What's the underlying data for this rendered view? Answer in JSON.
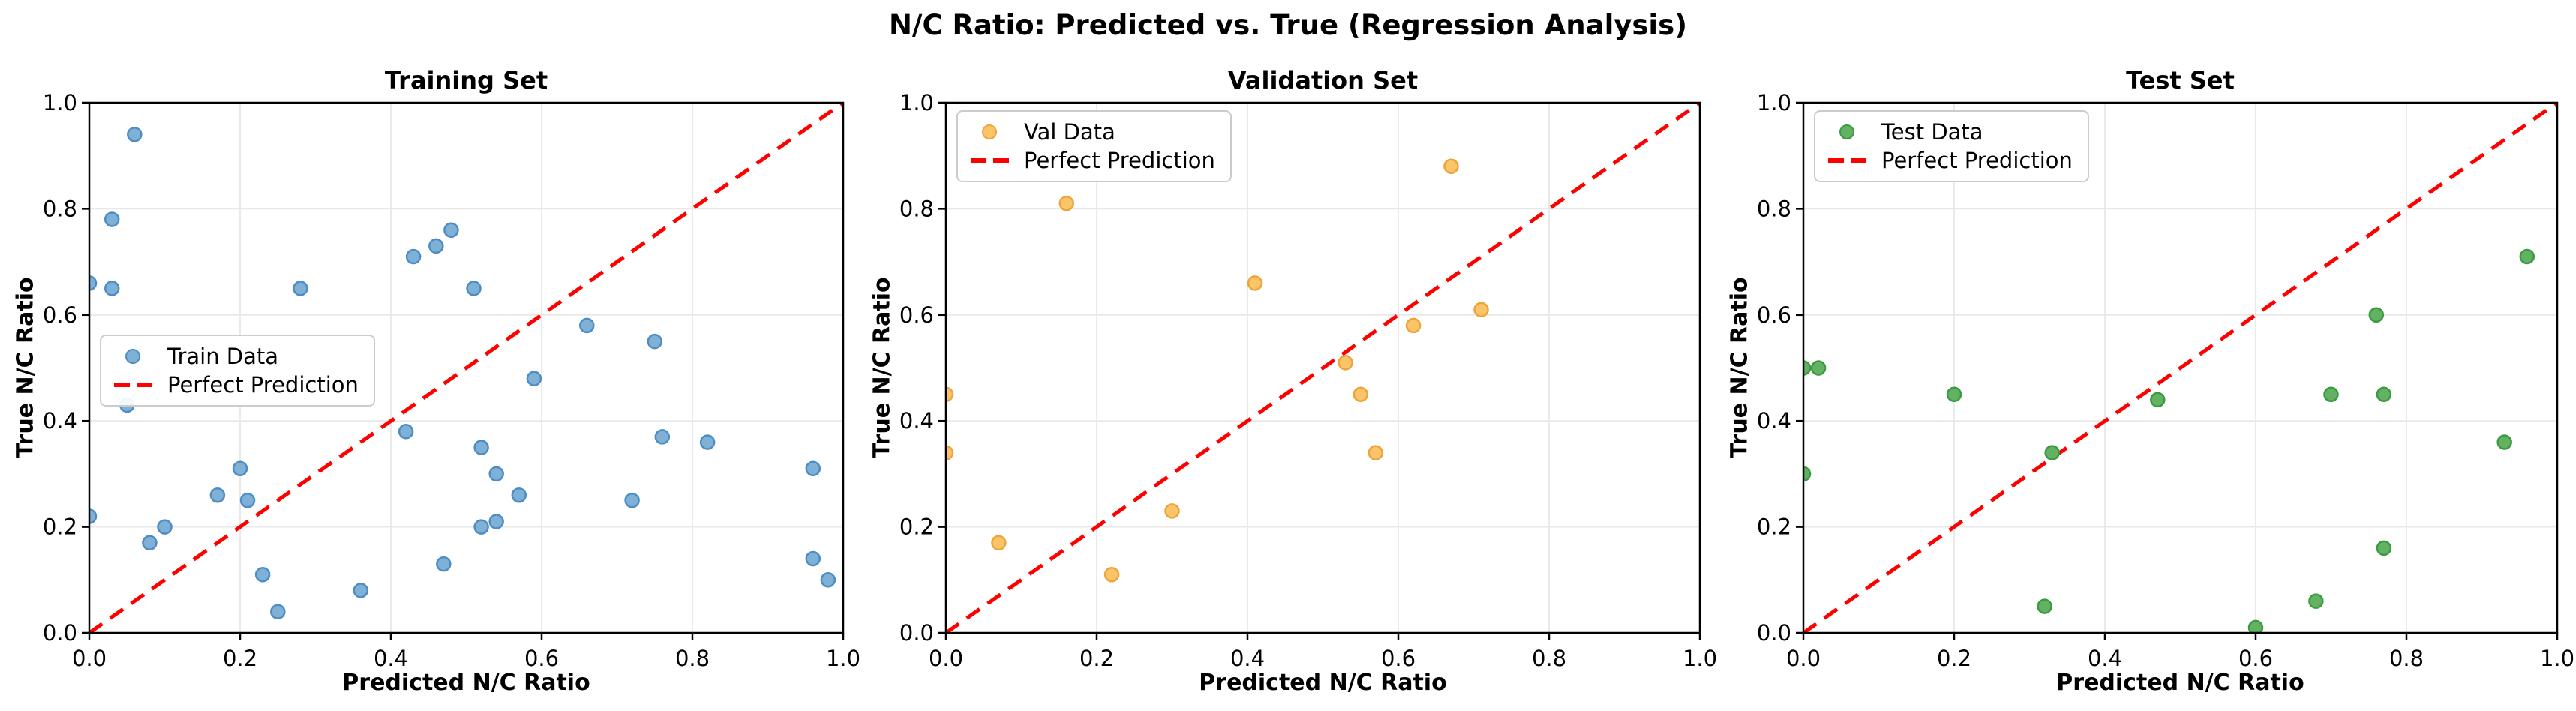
{
  "suptitle": "N/C Ratio: Predicted vs. True (Regression Analysis)",
  "colors": {
    "background": "#ffffff",
    "grid": "#e8e8e8",
    "spine": "#000000",
    "tick_text": "#000000",
    "reference_red": "#ff0000",
    "train_fill": "#7fb1d7",
    "train_edge": "#4d8dc4",
    "val_fill": "#fcc469",
    "val_edge": "#eda43c",
    "test_fill": "#63b163",
    "test_edge": "#3c9a41"
  },
  "chart_data": [
    {
      "type": "scatter",
      "title": "Training Set",
      "xlabel": "Predicted N/C Ratio",
      "ylabel": "True N/C Ratio",
      "xlim": [
        0.0,
        1.0
      ],
      "ylim": [
        0.0,
        1.0
      ],
      "xticks": [
        "0.0",
        "0.2",
        "0.4",
        "0.6",
        "0.8",
        "1.0"
      ],
      "yticks": [
        "0.0",
        "0.2",
        "0.4",
        "0.6",
        "0.8",
        "1.0"
      ],
      "grid": true,
      "legend": {
        "position": "center-left",
        "entries": [
          {
            "label": "Train Data",
            "swatch": "marker"
          },
          {
            "label": "Perfect Prediction",
            "swatch": "dashed-line"
          }
        ]
      },
      "series": [
        {
          "name": "Train Data",
          "marker": "circle",
          "fill": "#7fb1d7",
          "edge": "#4d8dc4",
          "points": [
            [
              0.0,
              0.66
            ],
            [
              0.0,
              0.22
            ],
            [
              0.03,
              0.65
            ],
            [
              0.03,
              0.78
            ],
            [
              0.05,
              0.43
            ],
            [
              0.06,
              0.94
            ],
            [
              0.08,
              0.17
            ],
            [
              0.1,
              0.2
            ],
            [
              0.17,
              0.26
            ],
            [
              0.2,
              0.31
            ],
            [
              0.21,
              0.25
            ],
            [
              0.23,
              0.11
            ],
            [
              0.25,
              0.04
            ],
            [
              0.28,
              0.65
            ],
            [
              0.36,
              0.08
            ],
            [
              0.42,
              0.38
            ],
            [
              0.43,
              0.71
            ],
            [
              0.46,
              0.73
            ],
            [
              0.47,
              0.13
            ],
            [
              0.48,
              0.76
            ],
            [
              0.51,
              0.65
            ],
            [
              0.52,
              0.2
            ],
            [
              0.52,
              0.35
            ],
            [
              0.54,
              0.21
            ],
            [
              0.54,
              0.3
            ],
            [
              0.57,
              0.26
            ],
            [
              0.59,
              0.48
            ],
            [
              0.66,
              0.58
            ],
            [
              0.72,
              0.25
            ],
            [
              0.75,
              0.55
            ],
            [
              0.76,
              0.37
            ],
            [
              0.82,
              0.36
            ],
            [
              0.96,
              0.14
            ],
            [
              0.96,
              0.31
            ],
            [
              0.98,
              0.1
            ]
          ]
        }
      ],
      "reference_line": {
        "label": "Perfect Prediction",
        "color": "#ff0000",
        "style": "dashed",
        "from": [
          0,
          0
        ],
        "to": [
          1,
          1
        ]
      }
    },
    {
      "type": "scatter",
      "title": "Validation Set",
      "xlabel": "Predicted N/C Ratio",
      "ylabel": "True N/C Ratio",
      "xlim": [
        0.0,
        1.0
      ],
      "ylim": [
        0.0,
        1.0
      ],
      "xticks": [
        "0.0",
        "0.2",
        "0.4",
        "0.6",
        "0.8",
        "1.0"
      ],
      "yticks": [
        "0.0",
        "0.2",
        "0.4",
        "0.6",
        "0.8",
        "1.0"
      ],
      "grid": true,
      "legend": {
        "position": "upper-left",
        "entries": [
          {
            "label": "Val Data",
            "swatch": "marker"
          },
          {
            "label": "Perfect Prediction",
            "swatch": "dashed-line"
          }
        ]
      },
      "series": [
        {
          "name": "Val Data",
          "marker": "circle",
          "fill": "#fcc469",
          "edge": "#eda43c",
          "points": [
            [
              0.0,
              0.34
            ],
            [
              0.0,
              0.45
            ],
            [
              0.07,
              0.17
            ],
            [
              0.16,
              0.81
            ],
            [
              0.22,
              0.11
            ],
            [
              0.3,
              0.23
            ],
            [
              0.41,
              0.66
            ],
            [
              0.53,
              0.51
            ],
            [
              0.55,
              0.45
            ],
            [
              0.57,
              0.34
            ],
            [
              0.62,
              0.58
            ],
            [
              0.67,
              0.88
            ],
            [
              0.71,
              0.61
            ]
          ]
        }
      ],
      "reference_line": {
        "label": "Perfect Prediction",
        "color": "#ff0000",
        "style": "dashed",
        "from": [
          0,
          0
        ],
        "to": [
          1,
          1
        ]
      }
    },
    {
      "type": "scatter",
      "title": "Test Set",
      "xlabel": "Predicted N/C Ratio",
      "ylabel": "True N/C Ratio",
      "xlim": [
        0.0,
        1.0
      ],
      "ylim": [
        0.0,
        1.0
      ],
      "xticks": [
        "0.0",
        "0.2",
        "0.4",
        "0.6",
        "0.8",
        "1.0"
      ],
      "yticks": [
        "0.0",
        "0.2",
        "0.4",
        "0.6",
        "0.8",
        "1.0"
      ],
      "grid": true,
      "legend": {
        "position": "upper-left",
        "entries": [
          {
            "label": "Test Data",
            "swatch": "marker"
          },
          {
            "label": "Perfect Prediction",
            "swatch": "dashed-line"
          }
        ]
      },
      "series": [
        {
          "name": "Test Data",
          "marker": "circle",
          "fill": "#63b163",
          "edge": "#3c9a41",
          "points": [
            [
              0.0,
              0.3
            ],
            [
              0.0,
              0.5
            ],
            [
              0.02,
              0.5
            ],
            [
              0.2,
              0.45
            ],
            [
              0.32,
              0.05
            ],
            [
              0.33,
              0.34
            ],
            [
              0.47,
              0.44
            ],
            [
              0.6,
              0.01
            ],
            [
              0.68,
              0.06
            ],
            [
              0.7,
              0.45
            ],
            [
              0.76,
              0.6
            ],
            [
              0.77,
              0.16
            ],
            [
              0.77,
              0.45
            ],
            [
              0.93,
              0.36
            ],
            [
              0.96,
              0.71
            ]
          ]
        }
      ],
      "reference_line": {
        "label": "Perfect Prediction",
        "color": "#ff0000",
        "style": "dashed",
        "from": [
          0,
          0
        ],
        "to": [
          1,
          1
        ]
      }
    }
  ]
}
